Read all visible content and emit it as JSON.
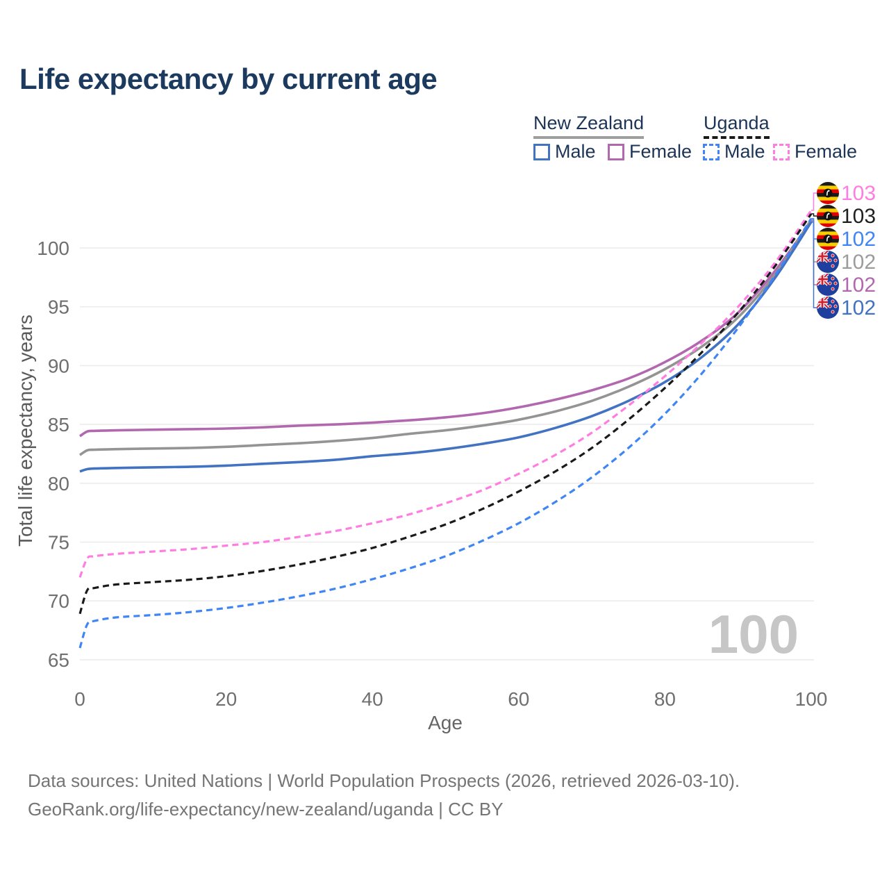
{
  "title": "Life expectancy by current age",
  "legend": {
    "groups": [
      {
        "label": "New Zealand",
        "line_style": "solid",
        "underline_color": "#9e9e9e",
        "items": [
          {
            "label": "Male",
            "color": "#4272c2",
            "dashed": false
          },
          {
            "label": "Female",
            "color": "#b168ae",
            "dashed": false
          }
        ]
      },
      {
        "label": "Uganda",
        "line_style": "dashed",
        "underline_color": "#1a1a1a",
        "items": [
          {
            "label": "Male",
            "color": "#3f85f5",
            "dashed": true
          },
          {
            "label": "Female",
            "color": "#ff7de1",
            "dashed": true
          }
        ]
      }
    ]
  },
  "chart_data": {
    "type": "line",
    "title": "Life expectancy by current age",
    "xlabel": "Age",
    "ylabel": "Total life expectancy, years",
    "xticks": [
      0,
      20,
      40,
      60,
      80,
      100
    ],
    "yticks": [
      65,
      70,
      75,
      80,
      85,
      90,
      95,
      100
    ],
    "xlim": [
      0,
      100
    ],
    "ylim": [
      64,
      104
    ],
    "grid": "horizontal",
    "watermark": "100",
    "ages": [
      0,
      1,
      2,
      5,
      10,
      15,
      20,
      25,
      30,
      35,
      40,
      45,
      50,
      55,
      60,
      65,
      70,
      75,
      80,
      85,
      90,
      95,
      100
    ],
    "series": [
      {
        "id": "nz-female",
        "name": "New Zealand Female",
        "country": "New Zealand",
        "sex": "Female",
        "color": "#b168ae",
        "label_color": "#b168ae",
        "dashed": false,
        "icon": "new-zealand-flag-icon",
        "label_row": 4,
        "end_label": "102",
        "values": [
          84.0,
          84.4,
          84.45,
          84.5,
          84.55,
          84.6,
          84.65,
          84.75,
          84.9,
          85.0,
          85.15,
          85.35,
          85.6,
          85.95,
          86.45,
          87.1,
          87.9,
          88.9,
          90.3,
          92.1,
          94.5,
          98.0,
          102.3
        ]
      },
      {
        "id": "nz-total",
        "name": "New Zealand",
        "country": "New Zealand",
        "sex": "Both",
        "color": "#949494",
        "label_color": "#9c9c9c",
        "dashed": false,
        "icon": "new-zealand-flag-icon",
        "label_row": 3,
        "end_label": "102",
        "values": [
          82.4,
          82.8,
          82.85,
          82.9,
          82.95,
          83.0,
          83.1,
          83.25,
          83.4,
          83.6,
          83.85,
          84.2,
          84.5,
          84.9,
          85.4,
          86.1,
          87.0,
          88.2,
          89.7,
          91.6,
          94.1,
          97.7,
          102.4
        ]
      },
      {
        "id": "nz-male",
        "name": "New Zealand Male",
        "country": "New Zealand",
        "sex": "Male",
        "color": "#4272c2",
        "label_color": "#4272c2",
        "dashed": false,
        "icon": "new-zealand-flag-icon",
        "label_row": 5,
        "end_label": "102",
        "values": [
          81.0,
          81.2,
          81.25,
          81.3,
          81.35,
          81.4,
          81.5,
          81.65,
          81.8,
          82.0,
          82.3,
          82.55,
          82.9,
          83.35,
          83.9,
          84.7,
          85.7,
          87.0,
          88.6,
          90.7,
          93.5,
          97.4,
          102.2
        ]
      },
      {
        "id": "ug-female",
        "name": "Uganda Female",
        "country": "Uganda",
        "sex": "Female",
        "color": "#ff7de1",
        "label_color": "#ff7de1",
        "dashed": true,
        "icon": "uganda-flag-icon",
        "label_row": 0,
        "end_label": "103",
        "values": [
          72.0,
          73.6,
          73.8,
          74.0,
          74.2,
          74.4,
          74.7,
          75.0,
          75.45,
          75.95,
          76.6,
          77.35,
          78.3,
          79.4,
          80.8,
          82.4,
          84.3,
          86.6,
          89.1,
          91.9,
          95.0,
          98.7,
          103.2
        ]
      },
      {
        "id": "ug-total",
        "name": "Uganda",
        "country": "Uganda",
        "sex": "Both",
        "color": "#1a1a1a",
        "label_color": "#1f1f1f",
        "dashed": true,
        "icon": "uganda-flag-icon",
        "label_row": 1,
        "end_label": "103",
        "values": [
          68.9,
          70.9,
          71.1,
          71.4,
          71.6,
          71.8,
          72.1,
          72.55,
          73.1,
          73.75,
          74.5,
          75.45,
          76.5,
          77.8,
          79.3,
          81.0,
          83.0,
          85.4,
          88.1,
          91.1,
          94.5,
          98.4,
          102.9
        ]
      },
      {
        "id": "ug-male",
        "name": "Uganda Male",
        "country": "Uganda",
        "sex": "Male",
        "color": "#3f85f5",
        "label_color": "#3f85f5",
        "dashed": true,
        "icon": "uganda-flag-icon",
        "label_row": 2,
        "end_label": "102",
        "values": [
          66.0,
          68.0,
          68.3,
          68.6,
          68.8,
          69.05,
          69.4,
          69.85,
          70.4,
          71.05,
          71.85,
          72.75,
          73.8,
          75.1,
          76.6,
          78.4,
          80.5,
          83.0,
          85.9,
          89.3,
          93.2,
          97.6,
          102.5
        ]
      }
    ]
  },
  "footer": {
    "line1": "Data sources: United Nations | World Population Prospects (2026, retrieved 2026-03-10).",
    "line2": "GeoRank.org/life-expectancy/new-zealand/uganda | CC BY"
  }
}
